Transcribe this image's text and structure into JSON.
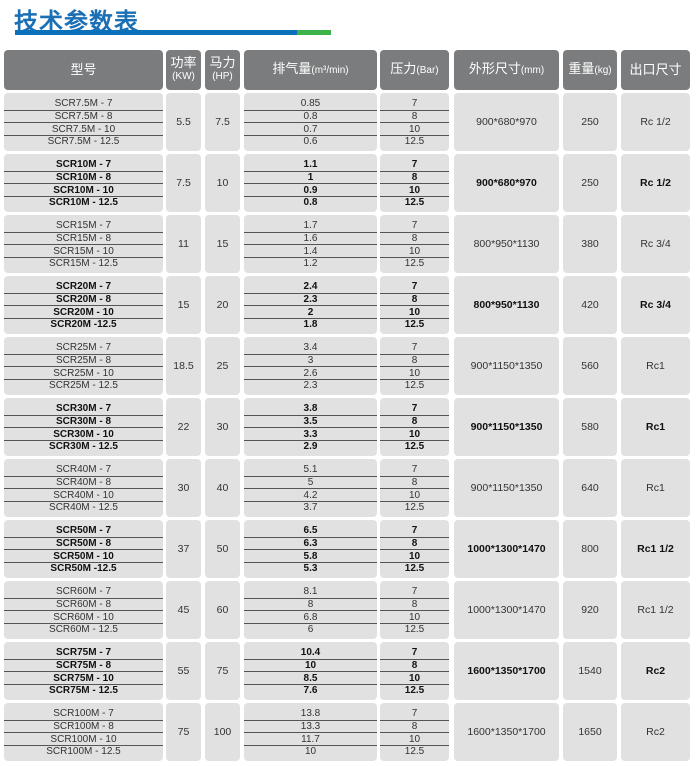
{
  "title": "技术参数表",
  "colors": {
    "title": "#1a6fb5",
    "bar_blue": "#0b72b9",
    "bar_green": "#3db34a",
    "header_bg": "#7b7c7e",
    "cell_bg": "#e1e1e2"
  },
  "headers": {
    "model": "型号",
    "power": "功率",
    "power_unit": "(KW)",
    "hp": "马力",
    "hp_unit": "(HP)",
    "flow": "排气量",
    "flow_unit": "(m³/min)",
    "pressure": "压力",
    "pressure_unit": "(Bar)",
    "dims": "外形尺寸",
    "dims_unit": "(mm)",
    "weight": "重量",
    "weight_unit": "(kg)",
    "outlet": "出口尺寸"
  },
  "groups": [
    {
      "models": [
        "SCR7.5M - 7",
        "SCR7.5M - 8",
        "SCR7.5M - 10",
        "SCR7.5M - 12.5"
      ],
      "kw": "5.5",
      "hp": "7.5",
      "flow": [
        "0.85",
        "0.8",
        "0.7",
        "0.6"
      ],
      "pressure": [
        "7",
        "8",
        "10",
        "12.5"
      ],
      "dims": "900*680*970",
      "weight": "250",
      "outlet": "Rc  1/2"
    },
    {
      "models": [
        "SCR10M - 7",
        "SCR10M - 8",
        "SCR10M - 10",
        "SCR10M - 12.5"
      ],
      "kw": "7.5",
      "hp": "10",
      "flow": [
        "1.1",
        "1",
        "0.9",
        "0.8"
      ],
      "pressure": [
        "7",
        "8",
        "10",
        "12.5"
      ],
      "dims": "900*680*970",
      "weight": "250",
      "outlet": "Rc  1/2"
    },
    {
      "models": [
        "SCR15M - 7",
        "SCR15M - 8",
        "SCR15M - 10",
        "SCR15M - 12.5"
      ],
      "kw": "11",
      "hp": "15",
      "flow": [
        "1.7",
        "1.6",
        "1.4",
        "1.2"
      ],
      "pressure": [
        "7",
        "8",
        "10",
        "12.5"
      ],
      "dims": "800*950*1130",
      "weight": "380",
      "outlet": "Rc  3/4"
    },
    {
      "models": [
        "SCR20M - 7",
        "SCR20M - 8",
        "SCR20M - 10",
        "SCR20M -12.5"
      ],
      "kw": "15",
      "hp": "20",
      "flow": [
        "2.4",
        "2.3",
        "2",
        "1.8"
      ],
      "pressure": [
        "7",
        "8",
        "10",
        "12.5"
      ],
      "dims": "800*950*1130",
      "weight": "420",
      "outlet": "Rc  3/4"
    },
    {
      "models": [
        "SCR25M - 7",
        "SCR25M - 8",
        "SCR25M - 10",
        "SCR25M - 12.5"
      ],
      "kw": "18.5",
      "hp": "25",
      "flow": [
        "3.4",
        "3",
        "2.6",
        "2.3"
      ],
      "pressure": [
        "7",
        "8",
        "10",
        "12.5"
      ],
      "dims": "900*1150*1350",
      "weight": "560",
      "outlet": "Rc1"
    },
    {
      "models": [
        "SCR30M - 7",
        "SCR30M - 8",
        "SCR30M - 10",
        "SCR30M - 12.5"
      ],
      "kw": "22",
      "hp": "30",
      "flow": [
        "3.8",
        "3.5",
        "3.3",
        "2.9"
      ],
      "pressure": [
        "7",
        "8",
        "10",
        "12.5"
      ],
      "dims": "900*1150*1350",
      "weight": "580",
      "outlet": "Rc1"
    },
    {
      "models": [
        "SCR40M - 7",
        "SCR40M - 8",
        "SCR40M - 10",
        "SCR40M - 12.5"
      ],
      "kw": "30",
      "hp": "40",
      "flow": [
        "5.1",
        "5",
        "4.2",
        "3.7"
      ],
      "pressure": [
        "7",
        "8",
        "10",
        "12.5"
      ],
      "dims": "900*1150*1350",
      "weight": "640",
      "outlet": "Rc1"
    },
    {
      "models": [
        "SCR50M - 7",
        "SCR50M - 8",
        "SCR50M - 10",
        "SCR50M -12.5"
      ],
      "kw": "37",
      "hp": "50",
      "flow": [
        "6.5",
        "6.3",
        "5.8",
        "5.3"
      ],
      "pressure": [
        "7",
        "8",
        "10",
        "12.5"
      ],
      "dims": "1000*1300*1470",
      "weight": "800",
      "outlet": "Rc1  1/2"
    },
    {
      "models": [
        "SCR60M - 7",
        "SCR60M - 8",
        "SCR60M - 10",
        "SCR60M - 12.5"
      ],
      "kw": "45",
      "hp": "60",
      "flow": [
        "8.1",
        "8",
        "6.8",
        "6"
      ],
      "pressure": [
        "7",
        "8",
        "10",
        "12.5"
      ],
      "dims": "1000*1300*1470",
      "weight": "920",
      "outlet": "Rc1  1/2"
    },
    {
      "models": [
        "SCR75M - 7",
        "SCR75M - 8",
        "SCR75M - 10",
        "SCR75M - 12.5"
      ],
      "kw": "55",
      "hp": "75",
      "flow": [
        "10.4",
        "10",
        "8.5",
        "7.6"
      ],
      "pressure": [
        "7",
        "8",
        "10",
        "12.5"
      ],
      "dims": "1600*1350*1700",
      "weight": "1540",
      "outlet": "Rc2"
    },
    {
      "models": [
        "SCR100M - 7",
        "SCR100M - 8",
        "SCR100M - 10",
        "SCR100M - 12.5"
      ],
      "kw": "75",
      "hp": "100",
      "flow": [
        "13.8",
        "13.3",
        "11.7",
        "10"
      ],
      "pressure": [
        "7",
        "8",
        "10",
        "12.5"
      ],
      "dims": "1600*1350*1700",
      "weight": "1650",
      "outlet": "Rc2"
    }
  ]
}
